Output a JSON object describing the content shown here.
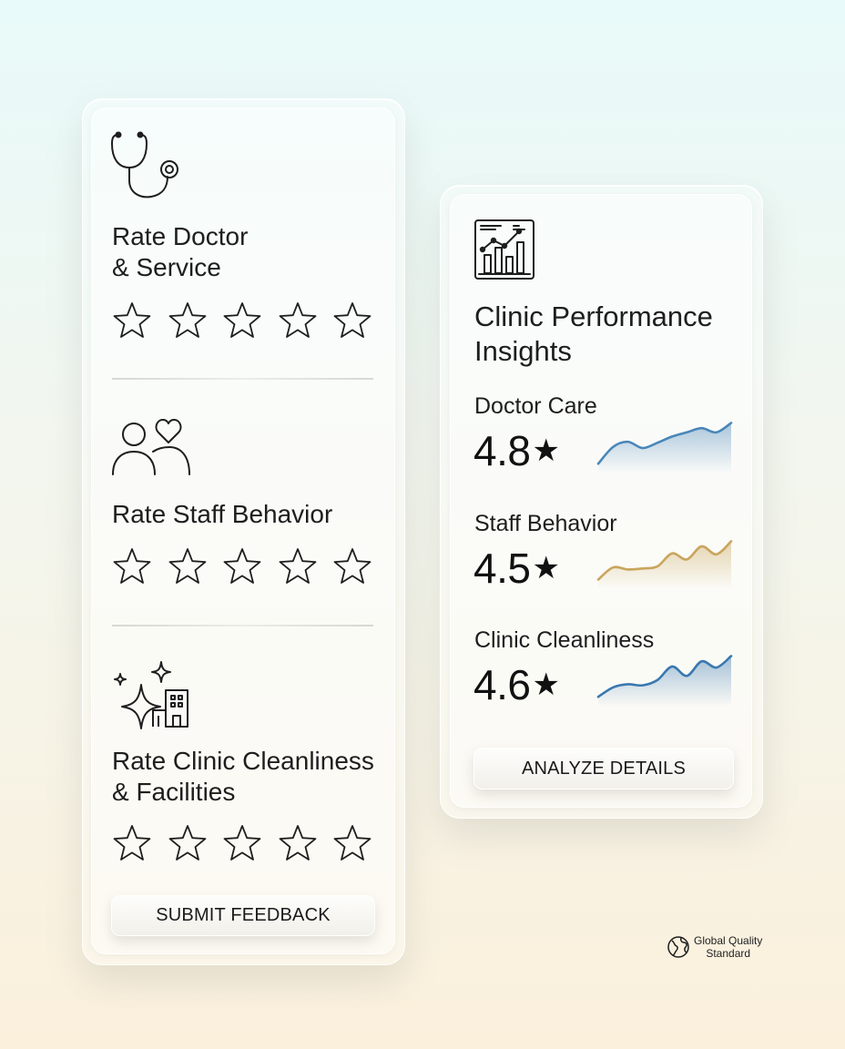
{
  "rating_card": {
    "sections": [
      {
        "icon": "stethoscope-icon",
        "title_line1": "Rate Doctor",
        "title_line2": "& Service"
      },
      {
        "icon": "people-heart-icon",
        "title_line1": "Rate Staff Behavior",
        "title_line2": ""
      },
      {
        "icon": "sparkle-building-icon",
        "title_line1": "Rate Clinic Cleanliness",
        "title_line2": "& Facilities"
      }
    ],
    "star_count": 5,
    "submit_label": "SUBMIT FEEDBACK"
  },
  "insights_card": {
    "icon": "analytics-report-icon",
    "title_line1": "Clinic Performance",
    "title_line2": "Insights",
    "metrics": [
      {
        "label": "Doctor Care",
        "value": "4.8",
        "star": "★",
        "color": "#4a86b8"
      },
      {
        "label": "Staff Behavior",
        "value": "4.5",
        "star": "★",
        "color": "#c9a55c"
      },
      {
        "label": "Clinic Cleanliness",
        "value": "4.6",
        "star": "★",
        "color": "#3a78b0"
      }
    ],
    "analyze_label": "ANALYZE DETAILS"
  },
  "footer": {
    "icon": "globe-icon",
    "line1": "Global Quality",
    "line2": "Standard"
  },
  "chart_data": [
    {
      "type": "area",
      "series": [
        {
          "values": [
            1.0,
            2.6,
            3.1,
            2.5,
            3.0,
            3.6,
            4.0,
            4.4,
            4.0,
            4.9
          ]
        }
      ]
    },
    {
      "type": "area",
      "series": [
        {
          "values": [
            1.0,
            2.2,
            2.0,
            2.1,
            2.3,
            3.6,
            3.0,
            4.3,
            3.5,
            4.8
          ]
        }
      ]
    },
    {
      "type": "area",
      "series": [
        {
          "values": [
            1.0,
            1.9,
            2.2,
            2.1,
            2.6,
            3.9,
            3.0,
            4.4,
            3.8,
            4.9
          ]
        }
      ]
    }
  ]
}
